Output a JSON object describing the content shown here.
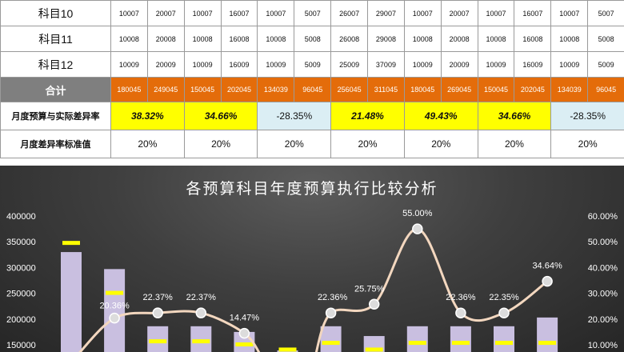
{
  "table": {
    "rows": [
      {
        "label": "科目10",
        "values": [
          "10007",
          "20007",
          "10007",
          "16007",
          "10007",
          "5007",
          "26007",
          "29007",
          "10007",
          "20007",
          "10007",
          "16007",
          "10007",
          "5007"
        ]
      },
      {
        "label": "科目11",
        "values": [
          "10008",
          "20008",
          "10008",
          "16008",
          "10008",
          "5008",
          "26008",
          "29008",
          "10008",
          "20008",
          "10008",
          "16008",
          "10008",
          "5008"
        ]
      },
      {
        "label": "科目12",
        "values": [
          "10009",
          "20009",
          "10009",
          "16009",
          "10009",
          "5009",
          "25009",
          "37009",
          "10009",
          "20009",
          "10009",
          "16009",
          "10009",
          "5009"
        ]
      }
    ],
    "total": {
      "label": "合计",
      "values": [
        "180045",
        "249045",
        "150045",
        "202045",
        "134039",
        "96045",
        "256045",
        "311045",
        "180045",
        "269045",
        "150045",
        "202045",
        "134039",
        "96045"
      ]
    },
    "diff": {
      "label": "月度预算与实际差异率",
      "values": [
        "38.32%",
        "34.66%",
        "-28.35%",
        "21.48%",
        "49.43%",
        "34.66%",
        "-28.35%"
      ],
      "styles": [
        "yellow",
        "yellow",
        "blue",
        "yellow",
        "yellow",
        "yellow",
        "blue"
      ]
    },
    "standard": {
      "label": "月度差异率标准值",
      "values": [
        "20%",
        "20%",
        "20%",
        "20%",
        "20%",
        "20%",
        "20%"
      ]
    }
  },
  "colors": {
    "accent_orange": "#e46c0a",
    "highlight_yellow": "#ffff00",
    "light_blue": "#dbeef4",
    "bar": "#c9bfe0",
    "line": "#f3d7bf"
  },
  "chart_data": {
    "type": "bar",
    "title": "各预算科目年度预算执行比较分析",
    "y_left_ticks": [
      "400000",
      "350000",
      "300000",
      "250000",
      "200000",
      "150000"
    ],
    "y_right_ticks": [
      "60.00%",
      "50.00%",
      "40.00%",
      "30.00%",
      "20.00%",
      "10.00%"
    ],
    "ylim": [
      100000,
      400000
    ],
    "y2lim": [
      0,
      60
    ],
    "series": [
      {
        "values": [
          330000,
          297000,
          186000,
          186000,
          175000,
          139000,
          186000,
          167000,
          186000,
          186000,
          186000,
          203000
        ]
      },
      {
        "values": [
          347000,
          250000,
          156000,
          156000,
          150000,
          140000,
          153000,
          140000,
          153000,
          153000,
          153000,
          153000
        ]
      },
      {
        "values": [
          null,
          20.36,
          22.37,
          22.37,
          14.47,
          null,
          22.36,
          25.75,
          55.0,
          22.36,
          22.35,
          34.64
        ]
      }
    ],
    "data_labels": [
      null,
      "20.36%",
      "22.37%",
      "22.37%",
      "14.47%",
      null,
      "22.36%",
      "25.75%",
      "55.00%",
      null,
      "22.35%",
      "34.64%"
    ],
    "extra_label": "22.36%"
  }
}
